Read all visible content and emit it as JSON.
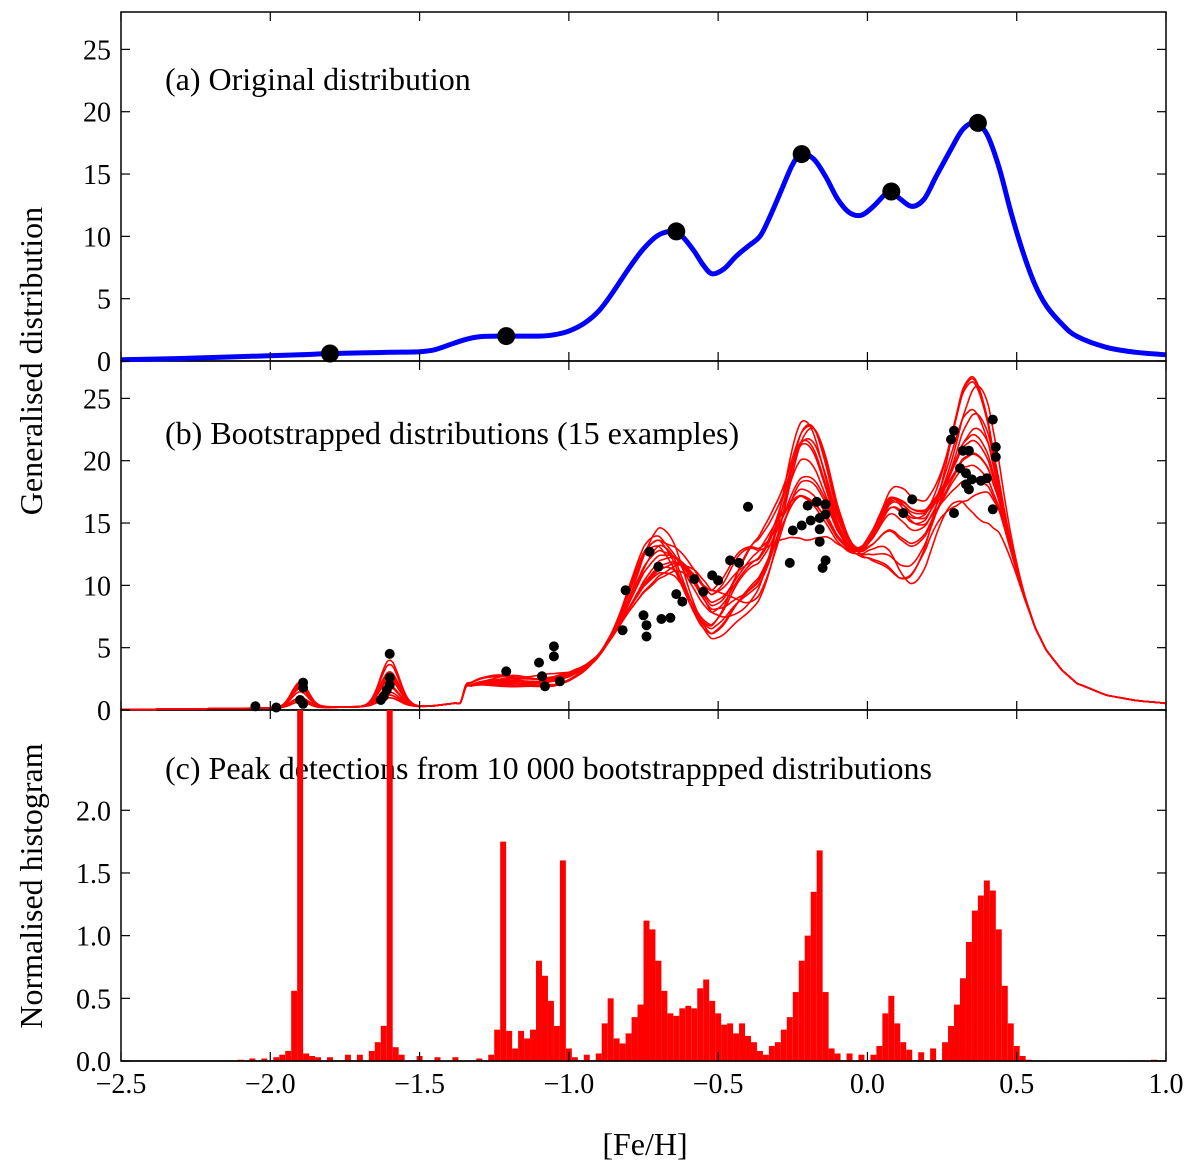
{
  "chart_data": {
    "type": "figure",
    "x_label": "[Fe/H]",
    "x_lim": [
      -2.5,
      1.0
    ],
    "x_ticks": [
      {
        "value": -2.5,
        "label": "−2.5"
      },
      {
        "value": -2.0,
        "label": "−2.0"
      },
      {
        "value": -1.5,
        "label": "−1.5"
      },
      {
        "value": -1.0,
        "label": "−1.0"
      },
      {
        "value": -0.5,
        "label": "−0.5"
      },
      {
        "value": 0.0,
        "label": "0.0"
      },
      {
        "value": 0.5,
        "label": "0.5"
      },
      {
        "value": 1.0,
        "label": "1.0"
      }
    ],
    "y_label_top": "Generalised distribution",
    "y_label_bottom": "Normalised histogram",
    "panels": [
      {
        "id": "a",
        "type": "line",
        "title": "(a)  Original distribution",
        "ylim": [
          0,
          28
        ],
        "y_ticks": [
          {
            "value": 0,
            "label": "0"
          },
          {
            "value": 5,
            "label": "5"
          },
          {
            "value": 10,
            "label": "10"
          },
          {
            "value": 15,
            "label": "15"
          },
          {
            "value": 20,
            "label": "20"
          },
          {
            "value": 25,
            "label": "25"
          }
        ],
        "line_color": "#0000ff",
        "curve": [
          [
            -2.5,
            0.1
          ],
          [
            -2.3,
            0.2
          ],
          [
            -2.1,
            0.35
          ],
          [
            -1.9,
            0.5
          ],
          [
            -1.8,
            0.6
          ],
          [
            -1.7,
            0.65
          ],
          [
            -1.6,
            0.7
          ],
          [
            -1.5,
            0.75
          ],
          [
            -1.45,
            0.9
          ],
          [
            -1.4,
            1.3
          ],
          [
            -1.35,
            1.7
          ],
          [
            -1.3,
            1.95
          ],
          [
            -1.22,
            2.0
          ],
          [
            -1.1,
            2.0
          ],
          [
            -1.05,
            2.1
          ],
          [
            -1.0,
            2.4
          ],
          [
            -0.95,
            3.0
          ],
          [
            -0.9,
            4.0
          ],
          [
            -0.85,
            5.6
          ],
          [
            -0.8,
            7.4
          ],
          [
            -0.75,
            9.0
          ],
          [
            -0.7,
            10.1
          ],
          [
            -0.65,
            10.4
          ],
          [
            -0.62,
            10.0
          ],
          [
            -0.58,
            8.8
          ],
          [
            -0.55,
            7.7
          ],
          [
            -0.52,
            7.0
          ],
          [
            -0.48,
            7.4
          ],
          [
            -0.44,
            8.4
          ],
          [
            -0.4,
            9.2
          ],
          [
            -0.36,
            10.0
          ],
          [
            -0.33,
            11.4
          ],
          [
            -0.29,
            13.6
          ],
          [
            -0.25,
            15.8
          ],
          [
            -0.22,
            16.6
          ],
          [
            -0.18,
            16.2
          ],
          [
            -0.14,
            14.8
          ],
          [
            -0.1,
            13.0
          ],
          [
            -0.06,
            11.9
          ],
          [
            -0.02,
            11.7
          ],
          [
            0.02,
            12.4
          ],
          [
            0.06,
            13.4
          ],
          [
            0.08,
            13.6
          ],
          [
            0.11,
            13.0
          ],
          [
            0.15,
            12.4
          ],
          [
            0.19,
            13.0
          ],
          [
            0.23,
            14.8
          ],
          [
            0.28,
            17.0
          ],
          [
            0.32,
            18.6
          ],
          [
            0.36,
            19.1
          ],
          [
            0.4,
            18.2
          ],
          [
            0.44,
            15.6
          ],
          [
            0.48,
            12.0
          ],
          [
            0.52,
            8.8
          ],
          [
            0.56,
            6.2
          ],
          [
            0.6,
            4.4
          ],
          [
            0.65,
            3.0
          ],
          [
            0.7,
            2.0
          ],
          [
            0.8,
            1.1
          ],
          [
            0.9,
            0.7
          ],
          [
            1.0,
            0.5
          ]
        ],
        "peaks": [
          {
            "x": -1.8,
            "y": 0.6
          },
          {
            "x": -1.21,
            "y": 2.0
          },
          {
            "x": -0.64,
            "y": 10.4
          },
          {
            "x": -0.22,
            "y": 16.6
          },
          {
            "x": 0.08,
            "y": 13.6
          },
          {
            "x": 0.37,
            "y": 19.1
          }
        ]
      },
      {
        "id": "b",
        "type": "line",
        "title": "(b)  Bootstrapped distributions (15 examples)",
        "ylim": [
          0,
          28
        ],
        "y_ticks": [
          {
            "value": 0,
            "label": "0"
          },
          {
            "value": 5,
            "label": "5"
          },
          {
            "value": 10,
            "label": "10"
          },
          {
            "value": 15,
            "label": "15"
          },
          {
            "value": 20,
            "label": "20"
          },
          {
            "value": 25,
            "label": "25"
          }
        ],
        "line_color": "#ff0000",
        "n_examples": 15,
        "peaks": [
          {
            "x": -2.05,
            "y": 0.3
          },
          {
            "x": -1.98,
            "y": 0.2
          },
          {
            "x": -1.89,
            "y": 2.2
          },
          {
            "x": -1.89,
            "y": 1.8
          },
          {
            "x": -1.89,
            "y": 0.5
          },
          {
            "x": -1.9,
            "y": 0.8
          },
          {
            "x": -1.6,
            "y": 4.5
          },
          {
            "x": -1.6,
            "y": 2.6
          },
          {
            "x": -1.6,
            "y": 2.0
          },
          {
            "x": -1.61,
            "y": 1.6
          },
          {
            "x": -1.62,
            "y": 1.1
          },
          {
            "x": -1.63,
            "y": 0.8
          },
          {
            "x": -1.21,
            "y": 3.1
          },
          {
            "x": -1.1,
            "y": 3.8
          },
          {
            "x": -1.09,
            "y": 2.7
          },
          {
            "x": -1.08,
            "y": 1.9
          },
          {
            "x": -1.05,
            "y": 5.1
          },
          {
            "x": -1.05,
            "y": 4.3
          },
          {
            "x": -1.03,
            "y": 2.3
          },
          {
            "x": -0.82,
            "y": 6.4
          },
          {
            "x": -0.81,
            "y": 9.6
          },
          {
            "x": -0.75,
            "y": 7.6
          },
          {
            "x": -0.74,
            "y": 6.8
          },
          {
            "x": -0.74,
            "y": 5.9
          },
          {
            "x": -0.73,
            "y": 12.7
          },
          {
            "x": -0.7,
            "y": 11.5
          },
          {
            "x": -0.69,
            "y": 7.3
          },
          {
            "x": -0.66,
            "y": 7.4
          },
          {
            "x": -0.64,
            "y": 9.3
          },
          {
            "x": -0.62,
            "y": 8.7
          },
          {
            "x": -0.58,
            "y": 10.5
          },
          {
            "x": -0.55,
            "y": 9.5
          },
          {
            "x": -0.52,
            "y": 10.8
          },
          {
            "x": -0.5,
            "y": 10.4
          },
          {
            "x": -0.46,
            "y": 12.0
          },
          {
            "x": -0.43,
            "y": 11.8
          },
          {
            "x": -0.4,
            "y": 16.3
          },
          {
            "x": -0.26,
            "y": 11.8
          },
          {
            "x": -0.25,
            "y": 14.4
          },
          {
            "x": -0.22,
            "y": 14.8
          },
          {
            "x": -0.2,
            "y": 16.4
          },
          {
            "x": -0.19,
            "y": 15.2
          },
          {
            "x": -0.17,
            "y": 16.7
          },
          {
            "x": -0.16,
            "y": 15.4
          },
          {
            "x": -0.16,
            "y": 14.5
          },
          {
            "x": -0.16,
            "y": 13.5
          },
          {
            "x": -0.15,
            "y": 11.4
          },
          {
            "x": -0.14,
            "y": 16.5
          },
          {
            "x": -0.14,
            "y": 15.7
          },
          {
            "x": -0.14,
            "y": 12.0
          },
          {
            "x": 0.12,
            "y": 15.8
          },
          {
            "x": 0.15,
            "y": 16.9
          },
          {
            "x": 0.28,
            "y": 21.7
          },
          {
            "x": 0.29,
            "y": 22.4
          },
          {
            "x": 0.29,
            "y": 15.8
          },
          {
            "x": 0.31,
            "y": 19.4
          },
          {
            "x": 0.32,
            "y": 20.8
          },
          {
            "x": 0.33,
            "y": 19.0
          },
          {
            "x": 0.33,
            "y": 18.1
          },
          {
            "x": 0.34,
            "y": 20.8
          },
          {
            "x": 0.34,
            "y": 17.7
          },
          {
            "x": 0.35,
            "y": 18.5
          },
          {
            "x": 0.38,
            "y": 18.4
          },
          {
            "x": 0.4,
            "y": 18.6
          },
          {
            "x": 0.42,
            "y": 23.3
          },
          {
            "x": 0.42,
            "y": 16.1
          },
          {
            "x": 0.43,
            "y": 21.1
          },
          {
            "x": 0.43,
            "y": 20.3
          }
        ]
      },
      {
        "id": "c",
        "type": "bar",
        "title": "(c)  Peak detections from 10 000 bootstrappped distributions",
        "ylim": [
          0,
          2.8
        ],
        "y_ticks": [
          {
            "value": 0.0,
            "label": "0.0"
          },
          {
            "value": 0.5,
            "label": "0.5"
          },
          {
            "value": 1.0,
            "label": "1.0"
          },
          {
            "value": 1.5,
            "label": "1.5"
          },
          {
            "value": 2.0,
            "label": "2.0"
          }
        ],
        "bar_color": "#ff0000",
        "bin_width": 0.02,
        "bins": [
          {
            "x": -2.1,
            "value": 0.01
          },
          {
            "x": -2.06,
            "value": 0.02
          },
          {
            "x": -2.02,
            "value": 0.02
          },
          {
            "x": -1.98,
            "value": 0.03
          },
          {
            "x": -1.96,
            "value": 0.05
          },
          {
            "x": -1.94,
            "value": 0.08
          },
          {
            "x": -1.92,
            "value": 0.56
          },
          {
            "x": -1.9,
            "value": 2.9
          },
          {
            "x": -1.88,
            "value": 0.06
          },
          {
            "x": -1.86,
            "value": 0.04
          },
          {
            "x": -1.84,
            "value": 0.03
          },
          {
            "x": -1.8,
            "value": 0.03
          },
          {
            "x": -1.74,
            "value": 0.05
          },
          {
            "x": -1.7,
            "value": 0.05
          },
          {
            "x": -1.66,
            "value": 0.08
          },
          {
            "x": -1.64,
            "value": 0.15
          },
          {
            "x": -1.62,
            "value": 0.28
          },
          {
            "x": -1.6,
            "value": 2.9
          },
          {
            "x": -1.58,
            "value": 0.11
          },
          {
            "x": -1.56,
            "value": 0.05
          },
          {
            "x": -1.5,
            "value": 0.04
          },
          {
            "x": -1.44,
            "value": 0.03
          },
          {
            "x": -1.38,
            "value": 0.03
          },
          {
            "x": -1.3,
            "value": 0.02
          },
          {
            "x": -1.26,
            "value": 0.05
          },
          {
            "x": -1.24,
            "value": 0.25
          },
          {
            "x": -1.22,
            "value": 1.75
          },
          {
            "x": -1.2,
            "value": 0.24
          },
          {
            "x": -1.18,
            "value": 0.1
          },
          {
            "x": -1.16,
            "value": 0.24
          },
          {
            "x": -1.14,
            "value": 0.18
          },
          {
            "x": -1.12,
            "value": 0.25
          },
          {
            "x": -1.1,
            "value": 0.8
          },
          {
            "x": -1.08,
            "value": 0.68
          },
          {
            "x": -1.06,
            "value": 0.48
          },
          {
            "x": -1.04,
            "value": 0.28
          },
          {
            "x": -1.02,
            "value": 1.6
          },
          {
            "x": -1.0,
            "value": 0.1
          },
          {
            "x": -0.98,
            "value": 0.03
          },
          {
            "x": -0.94,
            "value": 0.05
          },
          {
            "x": -0.9,
            "value": 0.06
          },
          {
            "x": -0.88,
            "value": 0.3
          },
          {
            "x": -0.86,
            "value": 0.5
          },
          {
            "x": -0.84,
            "value": 0.18
          },
          {
            "x": -0.82,
            "value": 0.14
          },
          {
            "x": -0.8,
            "value": 0.22
          },
          {
            "x": -0.78,
            "value": 0.35
          },
          {
            "x": -0.76,
            "value": 0.45
          },
          {
            "x": -0.74,
            "value": 1.12
          },
          {
            "x": -0.72,
            "value": 1.05
          },
          {
            "x": -0.7,
            "value": 0.8
          },
          {
            "x": -0.68,
            "value": 0.56
          },
          {
            "x": -0.66,
            "value": 0.38
          },
          {
            "x": -0.64,
            "value": 0.36
          },
          {
            "x": -0.62,
            "value": 0.42
          },
          {
            "x": -0.6,
            "value": 0.44
          },
          {
            "x": -0.58,
            "value": 0.42
          },
          {
            "x": -0.56,
            "value": 0.58
          },
          {
            "x": -0.54,
            "value": 0.65
          },
          {
            "x": -0.52,
            "value": 0.48
          },
          {
            "x": -0.5,
            "value": 0.38
          },
          {
            "x": -0.48,
            "value": 0.29
          },
          {
            "x": -0.46,
            "value": 0.3
          },
          {
            "x": -0.44,
            "value": 0.22
          },
          {
            "x": -0.42,
            "value": 0.3
          },
          {
            "x": -0.4,
            "value": 0.2
          },
          {
            "x": -0.38,
            "value": 0.15
          },
          {
            "x": -0.36,
            "value": 0.08
          },
          {
            "x": -0.34,
            "value": 0.05
          },
          {
            "x": -0.32,
            "value": 0.12
          },
          {
            "x": -0.3,
            "value": 0.15
          },
          {
            "x": -0.28,
            "value": 0.25
          },
          {
            "x": -0.26,
            "value": 0.35
          },
          {
            "x": -0.24,
            "value": 0.55
          },
          {
            "x": -0.22,
            "value": 0.8
          },
          {
            "x": -0.2,
            "value": 1.0
          },
          {
            "x": -0.18,
            "value": 1.35
          },
          {
            "x": -0.16,
            "value": 1.68
          },
          {
            "x": -0.14,
            "value": 0.55
          },
          {
            "x": -0.12,
            "value": 0.1
          },
          {
            "x": -0.1,
            "value": 0.06
          },
          {
            "x": -0.06,
            "value": 0.06
          },
          {
            "x": -0.02,
            "value": 0.05
          },
          {
            "x": 0.02,
            "value": 0.05
          },
          {
            "x": 0.04,
            "value": 0.12
          },
          {
            "x": 0.06,
            "value": 0.38
          },
          {
            "x": 0.08,
            "value": 0.52
          },
          {
            "x": 0.1,
            "value": 0.3
          },
          {
            "x": 0.12,
            "value": 0.15
          },
          {
            "x": 0.14,
            "value": 0.09
          },
          {
            "x": 0.18,
            "value": 0.07
          },
          {
            "x": 0.22,
            "value": 0.1
          },
          {
            "x": 0.26,
            "value": 0.15
          },
          {
            "x": 0.28,
            "value": 0.28
          },
          {
            "x": 0.3,
            "value": 0.45
          },
          {
            "x": 0.32,
            "value": 0.66
          },
          {
            "x": 0.34,
            "value": 0.95
          },
          {
            "x": 0.36,
            "value": 1.2
          },
          {
            "x": 0.38,
            "value": 1.32
          },
          {
            "x": 0.4,
            "value": 1.44
          },
          {
            "x": 0.42,
            "value": 1.36
          },
          {
            "x": 0.44,
            "value": 1.05
          },
          {
            "x": 0.46,
            "value": 0.6
          },
          {
            "x": 0.48,
            "value": 0.3
          },
          {
            "x": 0.5,
            "value": 0.12
          },
          {
            "x": 0.52,
            "value": 0.04
          },
          {
            "x": 0.54,
            "value": 0.01
          },
          {
            "x": 0.96,
            "value": 0.01
          }
        ]
      }
    ]
  }
}
